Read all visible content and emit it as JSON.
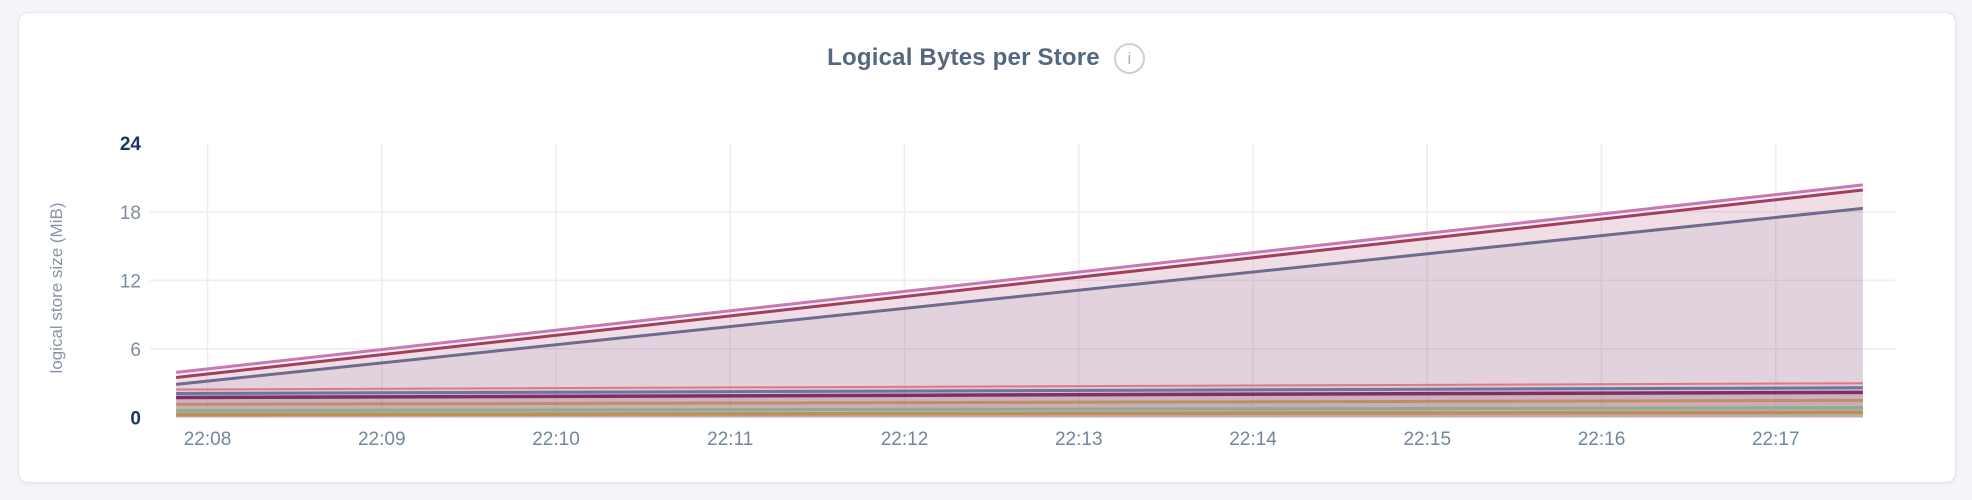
{
  "page": {
    "background": "#f4f5f9"
  },
  "card": {
    "background": "#ffffff",
    "border_color": "#e4e5e9"
  },
  "header": {
    "title": "Logical Bytes per Store",
    "info_icon_glyph": "i"
  },
  "chart_data": {
    "type": "area",
    "title": "Logical Bytes per Store",
    "xlabel": "",
    "ylabel": "logical store size (MiB)",
    "ylim": [
      0,
      24
    ],
    "yticks": [
      0,
      6,
      12,
      18,
      24
    ],
    "yticks_emphasized": [
      0,
      24
    ],
    "xticks": [
      "22:08",
      "22:09",
      "22:10",
      "22:11",
      "22:12",
      "22:13",
      "22:14",
      "22:15",
      "22:16",
      "22:17"
    ],
    "x_domain_minutes_from_first_tick": [
      -0.18,
      9.5
    ],
    "grid": true,
    "legend_position": "none",
    "grid_color": "#ededef",
    "series": [
      {
        "name": "series-1",
        "color": "#c878b2",
        "stroke_width": 3,
        "fill_opacity": 0.1,
        "points": [
          {
            "t": -0.18,
            "mib": 3.95
          },
          {
            "t": 9.5,
            "mib": 20.35
          }
        ]
      },
      {
        "name": "series-2",
        "color": "#a23f5e",
        "stroke_width": 3,
        "fill_opacity": 0.1,
        "points": [
          {
            "t": -0.18,
            "mib": 3.5
          },
          {
            "t": 9.5,
            "mib": 19.9
          }
        ]
      },
      {
        "name": "series-3",
        "color": "#6f6b8e",
        "stroke_width": 3,
        "fill_opacity": 0.1,
        "points": [
          {
            "t": -0.18,
            "mib": 2.9
          },
          {
            "t": 9.5,
            "mib": 18.3
          }
        ]
      },
      {
        "name": "series-4",
        "color": "#dd7a80",
        "stroke_width": 2,
        "fill_opacity": 0.1,
        "points": [
          {
            "t": -0.18,
            "mib": 2.45
          },
          {
            "t": 9.5,
            "mib": 3.0
          }
        ]
      },
      {
        "name": "series-5",
        "color": "#6b74a5",
        "stroke_width": 3,
        "fill_opacity": 0.1,
        "points": [
          {
            "t": -0.18,
            "mib": 2.1
          },
          {
            "t": 9.5,
            "mib": 2.6
          }
        ]
      },
      {
        "name": "series-6",
        "color": "#7e3063",
        "stroke_width": 3.5,
        "fill_opacity": 0.1,
        "points": [
          {
            "t": -0.18,
            "mib": 1.75
          },
          {
            "t": 9.5,
            "mib": 2.2
          }
        ]
      },
      {
        "name": "series-7",
        "color": "#bb925f",
        "stroke_width": 3,
        "fill_opacity": 0.1,
        "points": [
          {
            "t": -0.18,
            "mib": 1.15
          },
          {
            "t": 9.5,
            "mib": 1.5
          }
        ]
      },
      {
        "name": "series-8",
        "color": "#8aad8c",
        "stroke_width": 3,
        "fill_opacity": 0.1,
        "points": [
          {
            "t": -0.18,
            "mib": 0.6
          },
          {
            "t": 9.5,
            "mib": 0.85
          }
        ]
      },
      {
        "name": "series-9",
        "color": "#bb8f55",
        "stroke_width": 3.5,
        "fill_opacity": 0.1,
        "points": [
          {
            "t": -0.18,
            "mib": 0.25
          },
          {
            "t": 9.5,
            "mib": 0.45
          }
        ]
      }
    ]
  }
}
